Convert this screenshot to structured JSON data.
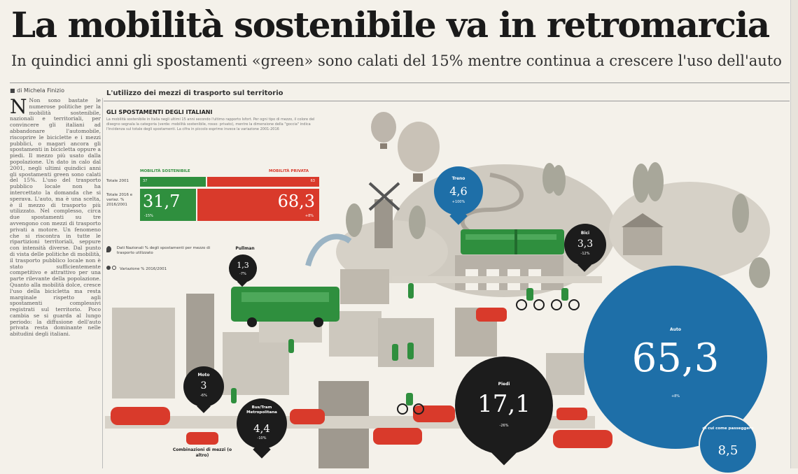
{
  "headline": "La mobilità sostenibile va in retromarcia",
  "subheadline": "In quindici anni gli spostamenti «green» sono calati del 15% mentre continua a crescere l'uso dell'auto",
  "byline": "di Michela Finizio",
  "section_title": "L'utilizzo dei mezzi di trasporto sul territorio",
  "article_column": "Non sono bastate le numerose politiche per la mobilità sostenibile, nazionali e territoriali, per convincere gli italiani ad abbandonare l'automobile, riscoprire le biciclette e i mezzi pubblici, o magari ancora gli spostamenti in bicicletta oppure a piedi. Il mezzo più usato dalla popolazione. Un dato in calo dal 2001, negli ultimi quindici anni gli spostamenti green sono calati del 15%. L'uso del trasporto pubblico locale non ha intercettato la domanda che si sperava. L'auto, ma è una scelta, è il mezzo di trasporto più utilizzato. Nel complesso, circa due spostamenti su tre avvengono con mezzi di trasporto privati a motore. Un fenomeno che si riscontra in tutte le ripartizioni territoriali, seppure con intensità diverse. Dal punto di vista delle politiche di mobilità, il trasporto pubblico locale non è stato sufficientemente competitivo e attrattivo per una parte rilevante della popolazione. Quanto alla mobilità dolce, cresce l'uso della bicicletta ma resta marginale rispetto agli spostamenti complessivi registrati sul territorio. Poco cambia se si guarda al lungo periodo: la diffusione dell'auto privata resta dominante nelle abitudini degli italiani.",
  "graphic": {
    "title": "GLI SPOSTAMENTI DEGLI ITALIANI",
    "description": "La mobilità sostenibile in Italia negli ultimi 15 anni secondo l'ultimo rapporto Isfort. Per ogni tipo di mezzo, il colore del disegno segnala la categoria (verde: mobilità sostenibile, rosso: privato), mentre la dimensione della \"goccia\" indica l'incidenza sul totale degli spostamenti. La cifra in piccolo esprime invece la variazione 2001-2016",
    "comparison": {
      "sustainable_label": "MOBILITÀ SOSTENIBILE",
      "private_label": "MOBILITÀ PRIVATA",
      "row1_label": "Totale 2001",
      "row1_sustainable": "37",
      "row1_private": "63",
      "row2_label": "Totale 2016 e variaz. % 2016/2001",
      "row2_sustainable": "31,7",
      "row2_sustainable_pct": "-15%",
      "row2_private": "68,3",
      "row2_private_pct": "+8%"
    },
    "legend": {
      "share_text": "Dati Nazionali % degli spostamenti per mezzo di trasporto utilizzato",
      "var_text": "Variazione % 2016/2001"
    },
    "pins": {
      "treno": {
        "label": "Treno",
        "value": "4,6",
        "pct": "+100%"
      },
      "bici": {
        "label": "Bici",
        "value": "3,3",
        "pct": "-12%"
      },
      "pullman": {
        "label": "",
        "value": "1,3",
        "pct": "-7%"
      },
      "pullman_caption": "Pullman",
      "moto": {
        "label": "Moto",
        "value": "3",
        "pct": "-6%"
      },
      "bus": {
        "label": "Bus/Tram Metropolitana",
        "value": "4,4",
        "pct": "-10%"
      },
      "piedi": {
        "label": "Piedi",
        "value": "17,1",
        "pct": "-26%"
      },
      "auto": {
        "label": "Auto",
        "value": "65,3",
        "pct": "+8%"
      },
      "car_sharing": {
        "label": "di cui come passeggero",
        "value": "8,5"
      },
      "combinazioni": "Combinazioni di mezzi (o altro)"
    },
    "colors": {
      "green": "#2f8f3e",
      "red": "#d93a2b",
      "blue": "#1e6fa8",
      "black": "#1c1c1c"
    }
  }
}
